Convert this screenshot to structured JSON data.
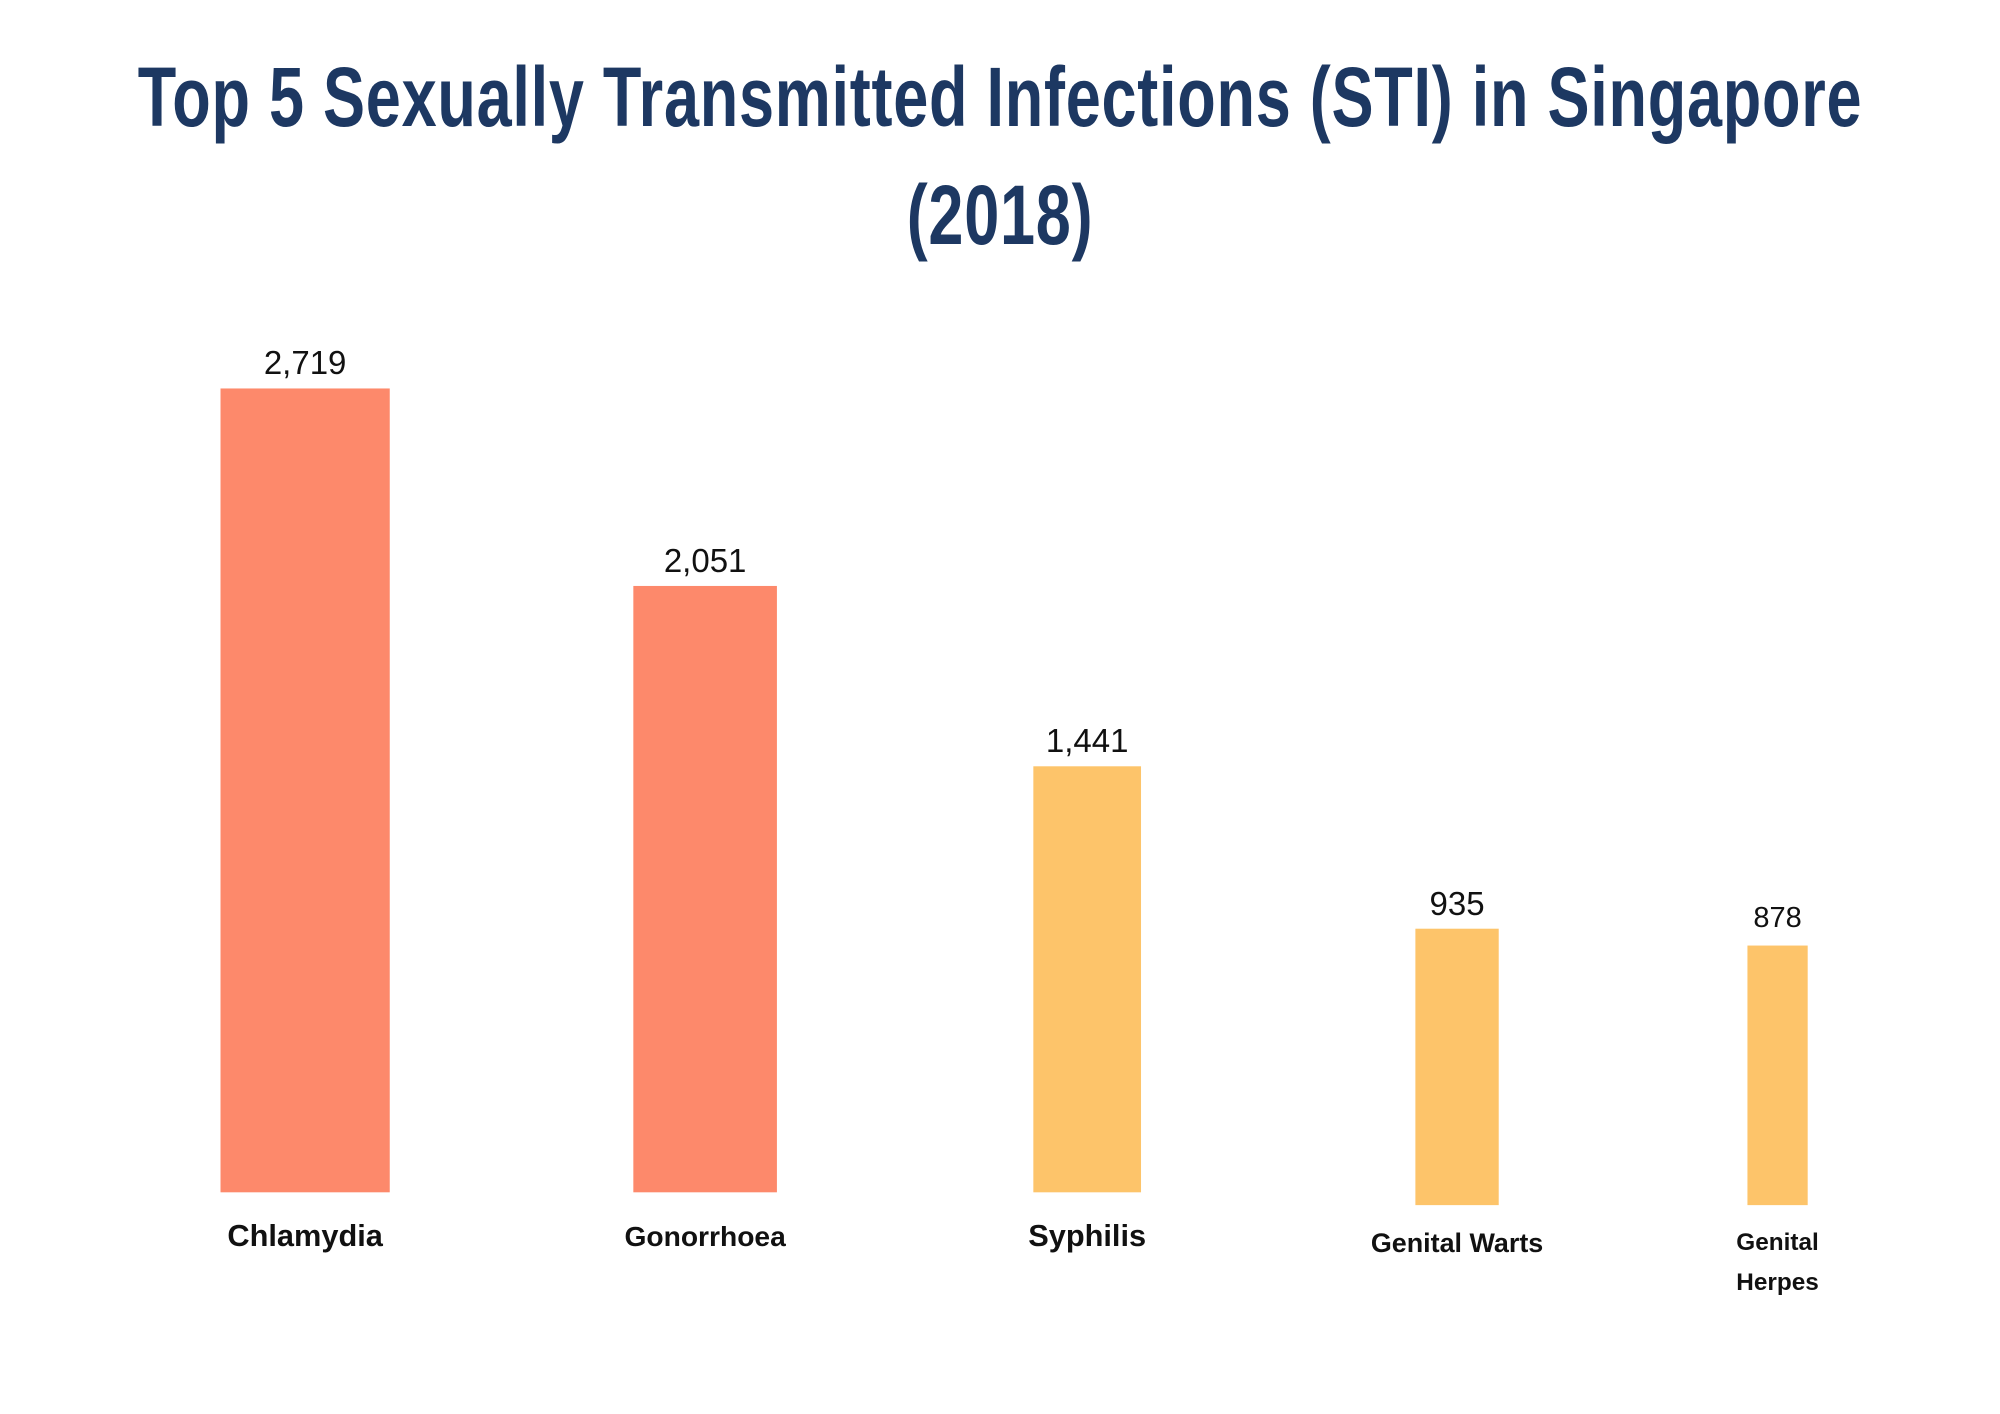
{
  "chart_data": {
    "type": "bar",
    "title": "Top 5 Sexually Transmitted Infections (STI) in Singapore (2018)",
    "categories": [
      "Chlamydia",
      "Gonorrhoea",
      "Syphilis",
      "Genital Warts",
      "Genital Herpes"
    ],
    "values": [
      2719,
      2051,
      1441,
      935,
      878
    ],
    "value_labels": [
      "2,719",
      "2,051",
      "1,441",
      "935",
      "878"
    ],
    "colors": [
      "#fd896b",
      "#fd896b",
      "#fdc46a",
      "#fdc46a",
      "#fdc46a"
    ]
  }
}
